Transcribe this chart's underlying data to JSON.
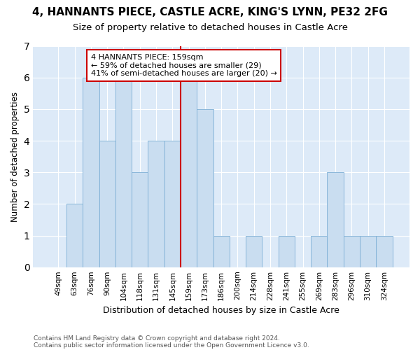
{
  "title": "4, HANNANTS PIECE, CASTLE ACRE, KING'S LYNN, PE32 2FG",
  "subtitle": "Size of property relative to detached houses in Castle Acre",
  "xlabel": "Distribution of detached houses by size in Castle Acre",
  "ylabel": "Number of detached properties",
  "categories": [
    "49sqm",
    "63sqm",
    "76sqm",
    "90sqm",
    "104sqm",
    "118sqm",
    "131sqm",
    "145sqm",
    "159sqm",
    "173sqm",
    "186sqm",
    "200sqm",
    "214sqm",
    "228sqm",
    "241sqm",
    "255sqm",
    "269sqm",
    "283sqm",
    "296sqm",
    "310sqm",
    "324sqm"
  ],
  "values": [
    0,
    2,
    6,
    4,
    6,
    3,
    4,
    4,
    6,
    5,
    1,
    0,
    1,
    0,
    1,
    0,
    1,
    3,
    1,
    1,
    1
  ],
  "bar_color": "#c9ddf0",
  "bar_edgecolor": "#7aadd4",
  "highlight_line_color": "#cc0000",
  "highlight_line_idx": 8,
  "annotation_text": "4 HANNANTS PIECE: 159sqm\n← 59% of detached houses are smaller (29)\n41% of semi-detached houses are larger (20) →",
  "annotation_box_color": "#ffffff",
  "annotation_box_edgecolor": "#cc0000",
  "ylim": [
    0,
    7
  ],
  "yticks": [
    0,
    1,
    2,
    3,
    4,
    5,
    6,
    7
  ],
  "footer1": "Contains HM Land Registry data © Crown copyright and database right 2024.",
  "footer2": "Contains public sector information licensed under the Open Government Licence v3.0.",
  "bg_color": "#ffffff",
  "plot_bg_color": "#ddeaf8"
}
